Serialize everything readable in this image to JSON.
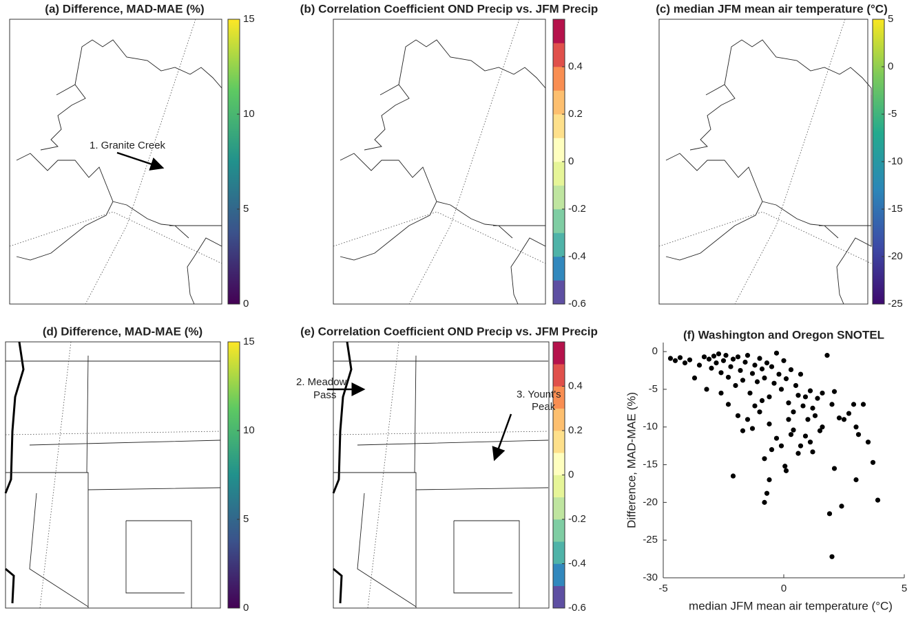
{
  "chart_data": [
    {
      "type": "map",
      "title": "(a) Difference, MAD-MAE (%)",
      "clim": [
        0,
        15
      ],
      "cticks": [
        0,
        5,
        10,
        15
      ],
      "colormap": [
        "#440154",
        "#3b528b",
        "#21918c",
        "#5ec962",
        "#fde725"
      ],
      "annotations": [
        [
          "1. Granite Creek"
        ]
      ]
    },
    {
      "type": "map",
      "title": "(b) Correlation Coefficient OND Precip vs. JFM Precip",
      "clim": [
        -0.6,
        0.6
      ],
      "cticks": [
        -0.6,
        -0.4,
        -0.2,
        0,
        0.2,
        0.4
      ],
      "colors": [
        "#5e4fa2",
        "#3288bd",
        "#4fb3a8",
        "#7fcda3",
        "#bfe5a0",
        "#e6f598",
        "#ffffbf",
        "#fee08b",
        "#fdbf6f",
        "#f98e52",
        "#e0504b",
        "#b5124b"
      ],
      "annotations": []
    },
    {
      "type": "map",
      "title": "(c) median JFM mean air temperature (°C)",
      "clim": [
        -25,
        5
      ],
      "cticks": [
        -25,
        -20,
        -15,
        -10,
        -5,
        0,
        5
      ],
      "colormap": [
        "#3e0a6e",
        "#3d4aa6",
        "#2b86b8",
        "#23aa8e",
        "#7bc95b",
        "#f9e720"
      ],
      "annotations": []
    },
    {
      "type": "map",
      "title": "(d) Difference, MAD-MAE (%)",
      "clim": [
        0,
        15
      ],
      "cticks": [
        0,
        5,
        10,
        15
      ],
      "colormap": [
        "#440154",
        "#3b528b",
        "#21918c",
        "#5ec962",
        "#fde725"
      ],
      "annotations": []
    },
    {
      "type": "map",
      "title": "(e) Correlation Coefficient OND Precip vs. JFM Precip",
      "clim": [
        -0.6,
        0.6
      ],
      "cticks": [
        -0.6,
        -0.4,
        -0.2,
        0,
        0.2,
        0.4
      ],
      "colors": [
        "#5e4fa2",
        "#3288bd",
        "#4fb3a8",
        "#7fcda3",
        "#bfe5a0",
        "#e6f598",
        "#ffffbf",
        "#fee08b",
        "#fdbf6f",
        "#f98e52",
        "#e0504b",
        "#b5124b"
      ],
      "annotations": [
        [
          "2. Meadow",
          "Pass"
        ],
        [
          "3. Yount's",
          "Peak"
        ]
      ]
    },
    {
      "type": "scatter",
      "title": "(f) Washington and Oregon SNOTEL",
      "xlabel": "median JFM mean air temperature (°C)",
      "ylabel": "Difference, MAD-MAE (%)",
      "color": "#000000",
      "xlim": [
        -5,
        5
      ],
      "xticks": [
        -5,
        0,
        5
      ],
      "ylim": [
        -30,
        1.2
      ],
      "yticks": [
        -30,
        -25,
        -20,
        -15,
        -10,
        -5,
        0
      ],
      "x": [
        -4.7,
        -4.5,
        -4.3,
        -4.1,
        -3.9,
        -3.7,
        -3.5,
        -3.3,
        -3.1,
        -3.0,
        -2.9,
        -2.8,
        -2.7,
        -2.6,
        -2.5,
        -2.4,
        -2.3,
        -2.2,
        -2.1,
        -2.0,
        -1.9,
        -1.8,
        -1.7,
        -1.6,
        -1.5,
        -1.4,
        -1.3,
        -1.2,
        -1.1,
        -1.0,
        -0.9,
        -0.8,
        -0.7,
        -0.6,
        -0.5,
        -0.4,
        -0.3,
        -0.2,
        -0.1,
        0.0,
        0.1,
        0.2,
        0.3,
        0.4,
        0.5,
        0.6,
        0.7,
        0.8,
        0.9,
        1.0,
        1.1,
        1.2,
        1.3,
        1.4,
        1.5,
        1.6,
        1.8,
        2.0,
        2.1,
        2.3,
        2.5,
        2.7,
        2.9,
        3.0,
        3.1,
        3.3,
        3.5,
        3.7,
        3.9,
        3.0,
        2.4,
        2.1,
        2.0,
        1.9,
        -2.1,
        -0.8,
        -0.7,
        -0.6,
        -0.5,
        -0.8,
        0.1,
        0.05,
        -0.3,
        -0.1,
        0.3,
        0.7,
        1.2,
        -1.3,
        -1.7,
        -2.3,
        -1.9,
        -1.5,
        -1.0,
        -0.6,
        0.4,
        0.9,
        1.6,
        0.2,
        -0.9,
        -1.2,
        -2.6,
        -3.2,
        1.1,
        0.6
      ],
      "y": [
        -0.9,
        -1.2,
        -0.8,
        -1.5,
        -1.1,
        -3.5,
        -1.8,
        -0.7,
        -1.0,
        -2.2,
        -0.6,
        -1.5,
        -0.3,
        -2.8,
        -1.2,
        -0.5,
        -3.4,
        -2.0,
        -1.0,
        -4.5,
        -0.7,
        -2.5,
        -3.8,
        -1.4,
        -0.5,
        -5.5,
        -2.9,
        -1.8,
        -4.0,
        -0.9,
        -2.3,
        -3.5,
        -1.5,
        -6.0,
        -2.0,
        -4.2,
        -0.2,
        -3.0,
        -5.0,
        -1.2,
        -3.6,
        -6.8,
        -2.4,
        -8.0,
        -4.5,
        -5.8,
        -3.0,
        -7.2,
        -6.0,
        -9.0,
        -5.2,
        -7.5,
        -8.5,
        -6.2,
        -10.5,
        -5.5,
        -0.5,
        -7.0,
        -5.3,
        -8.8,
        -9.0,
        -8.2,
        -7.0,
        -10.0,
        -11.0,
        -7.0,
        -12.0,
        -14.7,
        -19.7,
        -17.0,
        -20.5,
        -15.5,
        -27.2,
        -21.5,
        -16.5,
        -20.0,
        -18.8,
        -17.0,
        -13.0,
        -14.2,
        -15.8,
        -15.2,
        -11.5,
        -12.5,
        -11.0,
        -12.5,
        -13.3,
        -10.2,
        -10.5,
        -7.0,
        -8.5,
        -9.0,
        -8.0,
        -9.6,
        -10.4,
        -11.2,
        -10.0,
        -9.0,
        -6.5,
        -7.2,
        -5.5,
        -5.0,
        -12.0,
        -13.5
      ]
    }
  ]
}
